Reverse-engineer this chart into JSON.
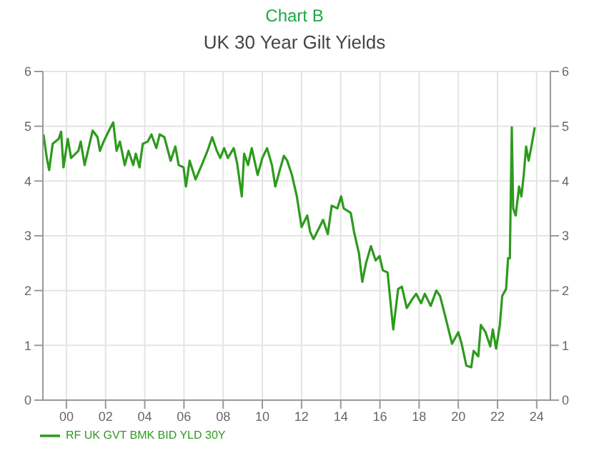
{
  "chart_data": {
    "type": "line",
    "title": "Chart B",
    "subtitle": "UK 30 Year Gilt Yields",
    "x": [
      1998.83,
      1999.0,
      1999.12,
      1999.3,
      1999.61,
      1999.73,
      1999.85,
      2000.07,
      2000.24,
      2000.61,
      2000.73,
      2000.93,
      2001.34,
      2001.59,
      2001.71,
      2001.9,
      2002.2,
      2002.39,
      2002.56,
      2002.73,
      2002.98,
      2003.17,
      2003.41,
      2003.54,
      2003.73,
      2003.9,
      2004.15,
      2004.34,
      2004.59,
      2004.76,
      2005.0,
      2005.32,
      2005.56,
      2005.73,
      2005.98,
      2006.1,
      2006.29,
      2006.59,
      2006.95,
      2007.2,
      2007.44,
      2007.68,
      2007.85,
      2008.05,
      2008.24,
      2008.54,
      2008.71,
      2008.95,
      2009.07,
      2009.27,
      2009.46,
      2009.76,
      2010.0,
      2010.24,
      2010.49,
      2010.66,
      2010.93,
      2011.1,
      2011.27,
      2011.51,
      2011.76,
      2012.0,
      2012.29,
      2012.44,
      2012.61,
      2012.85,
      2013.1,
      2013.34,
      2013.54,
      2013.83,
      2014.02,
      2014.15,
      2014.51,
      2014.68,
      2014.93,
      2015.1,
      2015.29,
      2015.54,
      2015.78,
      2015.98,
      2016.15,
      2016.39,
      2016.68,
      2016.93,
      2017.12,
      2017.37,
      2017.66,
      2017.85,
      2018.1,
      2018.29,
      2018.59,
      2018.88,
      2019.07,
      2019.32,
      2019.68,
      2020.0,
      2020.17,
      2020.41,
      2020.66,
      2020.78,
      2021.02,
      2021.15,
      2021.39,
      2021.63,
      2021.76,
      2021.93,
      2022.12,
      2022.24,
      2022.44,
      2022.54,
      2022.63,
      2022.73,
      2022.8,
      2022.93,
      2023.1,
      2023.22,
      2023.34,
      2023.46,
      2023.59,
      2023.71,
      2023.9
    ],
    "series": [
      {
        "name": "RF UK GVT BMK BID YLD 30Y",
        "color": "#2e9a1e",
        "values": [
          4.85,
          4.42,
          4.2,
          4.68,
          4.77,
          4.9,
          4.25,
          4.77,
          4.42,
          4.55,
          4.72,
          4.29,
          4.92,
          4.8,
          4.55,
          4.72,
          4.94,
          5.07,
          4.55,
          4.72,
          4.29,
          4.55,
          4.29,
          4.5,
          4.25,
          4.68,
          4.72,
          4.85,
          4.6,
          4.85,
          4.8,
          4.37,
          4.63,
          4.29,
          4.25,
          3.9,
          4.37,
          4.03,
          4.33,
          4.55,
          4.8,
          4.55,
          4.42,
          4.6,
          4.42,
          4.6,
          4.33,
          3.72,
          4.5,
          4.29,
          4.6,
          4.11,
          4.42,
          4.6,
          4.29,
          3.9,
          4.25,
          4.46,
          4.37,
          4.11,
          3.72,
          3.16,
          3.37,
          3.07,
          2.94,
          3.11,
          3.29,
          3.03,
          3.55,
          3.5,
          3.72,
          3.5,
          3.42,
          3.07,
          2.68,
          2.16,
          2.5,
          2.81,
          2.55,
          2.63,
          2.37,
          2.33,
          1.29,
          2.03,
          2.07,
          1.68,
          1.85,
          1.94,
          1.77,
          1.94,
          1.72,
          2.0,
          1.9,
          1.55,
          1.03,
          1.24,
          1.03,
          0.63,
          0.6,
          0.9,
          0.8,
          1.37,
          1.24,
          0.98,
          1.29,
          0.94,
          1.37,
          1.9,
          2.03,
          2.59,
          2.59,
          4.98,
          3.5,
          3.37,
          3.9,
          3.72,
          4.11,
          4.63,
          4.37,
          4.59,
          4.98
        ]
      }
    ],
    "xlim": [
      1998.8,
      2024.7
    ],
    "xticks": [
      {
        "value": 2000,
        "label": "00"
      },
      {
        "value": 2002,
        "label": "02"
      },
      {
        "value": 2004,
        "label": "04"
      },
      {
        "value": 2006,
        "label": "06"
      },
      {
        "value": 2008,
        "label": "08"
      },
      {
        "value": 2010,
        "label": "10"
      },
      {
        "value": 2012,
        "label": "12"
      },
      {
        "value": 2014,
        "label": "14"
      },
      {
        "value": 2016,
        "label": "16"
      },
      {
        "value": 2018,
        "label": "18"
      },
      {
        "value": 2020,
        "label": "20"
      },
      {
        "value": 2022,
        "label": "22"
      },
      {
        "value": 2024,
        "label": "24"
      }
    ],
    "ylim": [
      0,
      6
    ],
    "yticks": [
      0,
      1,
      2,
      3,
      4,
      5,
      6
    ],
    "y2lim": [
      0,
      6
    ],
    "y2ticks": [
      0,
      1,
      2,
      3,
      4,
      5,
      6
    ],
    "grid": true,
    "legend": "bottom left",
    "marker": "none",
    "line_style": "solid"
  }
}
